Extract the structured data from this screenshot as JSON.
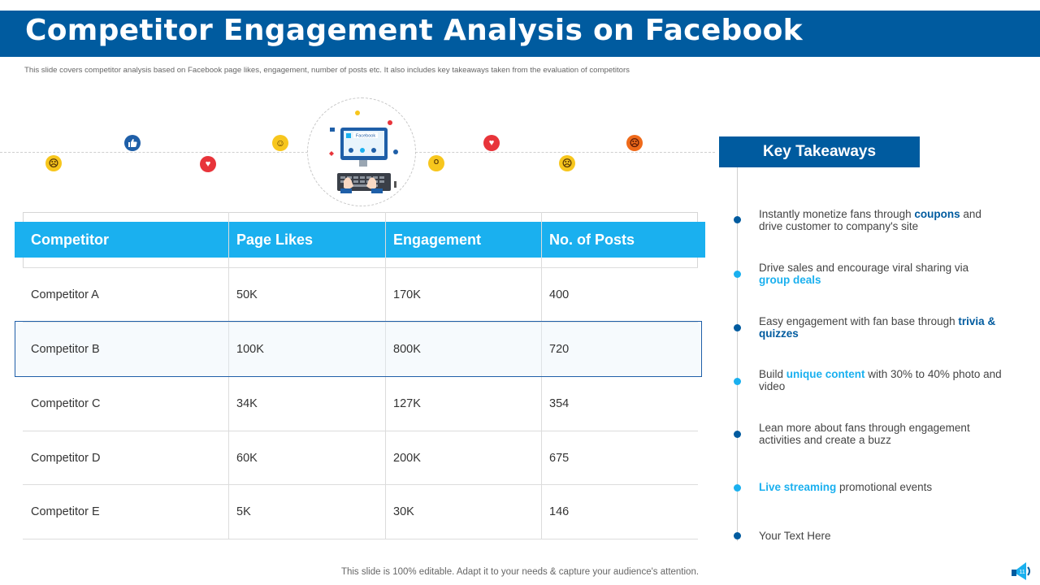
{
  "header": {
    "title": "Competitor Engagement Analysis on Facebook",
    "subtitle": "This slide covers competitor analysis based on Facebook page likes, engagement, number of posts etc. It also includes key takeaways taken from the evaluation of competitors"
  },
  "emoji_strip": {
    "icons": [
      "sad-face-icon",
      "thumbs-up-icon",
      "heart-icon",
      "laughing-face-icon",
      "surprised-face-icon",
      "heart-icon",
      "sad-face-icon",
      "angry-face-icon"
    ],
    "hero_label": "Facebook"
  },
  "table": {
    "headers": [
      "Competitor",
      "Page Likes",
      "Engagement",
      "No. of Posts"
    ],
    "rows": [
      [
        "Competitor A",
        "50K",
        "170K",
        "400"
      ],
      [
        "Competitor B",
        "100K",
        "800K",
        "720"
      ],
      [
        "Competitor C",
        "34K",
        "127K",
        "354"
      ],
      [
        "Competitor D",
        "60K",
        "200K",
        "675"
      ],
      [
        "Competitor E",
        "5K",
        "30K",
        "146"
      ]
    ],
    "highlighted_row": 1
  },
  "key_takeaways": {
    "title": "Key Takeaways",
    "items": [
      {
        "pre": "Instantly monetize fans through ",
        "hl": "coupons",
        "post": " and drive customer to company's site",
        "style": "dark"
      },
      {
        "pre": "Drive sales and encourage viral sharing via ",
        "hl": "group deals",
        "post": "",
        "style": "light"
      },
      {
        "pre": "Easy engagement with fan base through ",
        "hl": "trivia & quizzes",
        "post": "",
        "style": "dark"
      },
      {
        "pre": "Build ",
        "hl": "unique content",
        "post": " with 30% to 40% photo and video",
        "style": "light"
      },
      {
        "pre": "Lean more about fans through engagement activities and create a buzz",
        "hl": "",
        "post": "",
        "style": "dark"
      },
      {
        "pre": "",
        "hl": "Live streaming",
        "post": " promotional events",
        "style": "light"
      },
      {
        "pre": "Your Text Here",
        "hl": "",
        "post": "",
        "style": "dark"
      }
    ]
  },
  "footer": {
    "text": "This slide is 100% editable. Adapt it to your needs & capture your audience's attention.",
    "page_number": "11"
  },
  "colors": {
    "primary": "#005b9f",
    "accent": "#1ab0ef"
  }
}
